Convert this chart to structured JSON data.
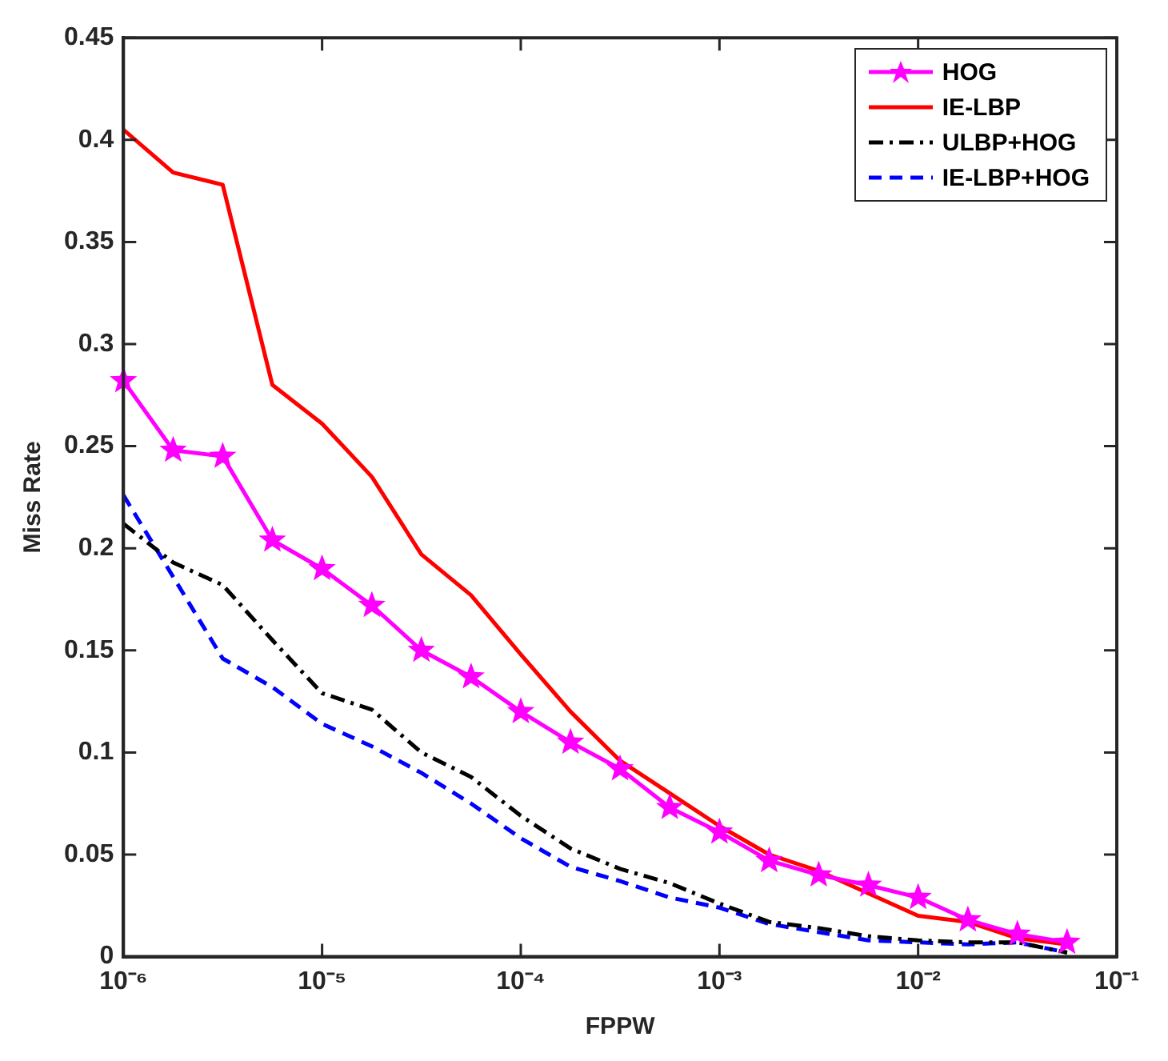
{
  "chart_data": {
    "type": "line",
    "xlabel": "FPPW",
    "ylabel": "Miss Rate",
    "log": "x",
    "x": [
      1e-06,
      1.78e-06,
      3.16e-06,
      5.62e-06,
      1e-05,
      1.78e-05,
      3.16e-05,
      5.62e-05,
      0.0001,
      0.000178,
      0.000316,
      0.000562,
      0.001,
      0.00178,
      0.00316,
      0.00562,
      0.01,
      0.0178,
      0.0316,
      0.0562
    ],
    "xlim": [
      1e-06,
      0.1
    ],
    "xticks": [
      {
        "value": 1e-06,
        "label": "10⁻⁶"
      },
      {
        "value": 1e-05,
        "label": "10⁻⁵"
      },
      {
        "value": 0.0001,
        "label": "10⁻⁴"
      },
      {
        "value": 0.001,
        "label": "10⁻³"
      },
      {
        "value": 0.01,
        "label": "10⁻²"
      },
      {
        "value": 0.1,
        "label": "10⁻¹"
      }
    ],
    "ylim": [
      0,
      0.45
    ],
    "yticks": [
      0,
      0.05,
      0.1,
      0.15,
      0.2,
      0.25,
      0.3,
      0.35,
      0.4,
      0.45
    ],
    "grid": false,
    "legend": "top right",
    "series": [
      {
        "name": "HOG",
        "color": "#ff00ff",
        "marker": "star",
        "line_style": "solid",
        "values": [
          0.282,
          0.248,
          0.245,
          0.204,
          0.19,
          0.172,
          0.15,
          0.137,
          0.12,
          0.105,
          0.092,
          0.073,
          0.061,
          0.047,
          0.04,
          0.035,
          0.029,
          0.018,
          0.011,
          0.007
        ]
      },
      {
        "name": "IE-LBP",
        "color": "#ff0000",
        "marker": "none",
        "line_style": "solid",
        "values": [
          0.405,
          0.384,
          0.378,
          0.28,
          0.261,
          0.235,
          0.197,
          0.177,
          0.148,
          0.12,
          0.096,
          0.08,
          0.064,
          0.05,
          0.042,
          0.031,
          0.02,
          0.017,
          0.009,
          0.006
        ]
      },
      {
        "name": "ULBP+HOG",
        "color": "#000000",
        "marker": "none",
        "line_style": "dashdot",
        "values": [
          0.212,
          0.193,
          0.182,
          0.155,
          0.129,
          0.121,
          0.1,
          0.088,
          0.069,
          0.053,
          0.043,
          0.036,
          0.026,
          0.017,
          0.014,
          0.01,
          0.008,
          0.007,
          0.007,
          0.002
        ]
      },
      {
        "name": "IE-LBP+HOG",
        "color": "#0000ff",
        "marker": "none",
        "line_style": "dashed",
        "values": [
          0.226,
          0.186,
          0.146,
          0.132,
          0.114,
          0.103,
          0.09,
          0.075,
          0.058,
          0.044,
          0.037,
          0.029,
          0.024,
          0.016,
          0.012,
          0.008,
          0.007,
          0.006,
          0.007,
          0.002
        ]
      }
    ]
  }
}
